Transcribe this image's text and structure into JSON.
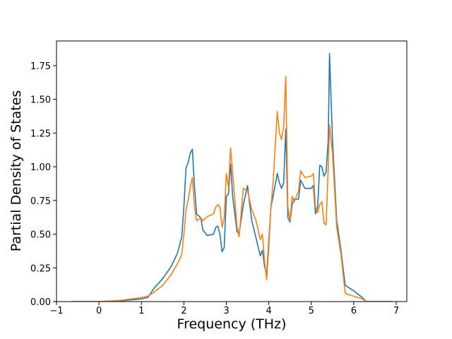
{
  "chart_data": {
    "type": "line",
    "xlabel": "Frequency (THz)",
    "ylabel": "Partial Density of States",
    "x": [
      -0.65,
      0,
      0.5,
      1.0,
      1.15,
      1.3,
      1.5,
      1.7,
      1.85,
      1.95,
      2.0,
      2.05,
      2.1,
      2.15,
      2.2,
      2.25,
      2.3,
      2.4,
      2.45,
      2.55,
      2.7,
      2.75,
      2.8,
      2.85,
      2.9,
      2.95,
      3.0,
      3.05,
      3.1,
      3.15,
      3.25,
      3.3,
      3.4,
      3.5,
      3.55,
      3.6,
      3.7,
      3.8,
      3.85,
      3.9,
      3.95,
      4.0,
      4.05,
      4.1,
      4.2,
      4.25,
      4.3,
      4.35,
      4.4,
      4.45,
      4.5,
      4.55,
      4.6,
      4.7,
      4.75,
      4.85,
      5.0,
      5.05,
      5.1,
      5.15,
      5.2,
      5.25,
      5.3,
      5.35,
      5.4,
      5.43,
      5.5,
      5.6,
      5.7,
      5.8,
      6.0,
      6.2,
      6.3,
      6.9
    ],
    "series": [
      {
        "color": "#1f77b4",
        "values": [
          0,
          0,
          0.005,
          0.02,
          0.03,
          0.1,
          0.17,
          0.26,
          0.36,
          0.48,
          0.7,
          0.99,
          1.03,
          1.1,
          1.13,
          0.85,
          0.65,
          0.62,
          0.53,
          0.49,
          0.5,
          0.55,
          0.56,
          0.5,
          0.37,
          0.4,
          0.78,
          0.8,
          1.02,
          0.78,
          0.52,
          0.5,
          0.72,
          0.86,
          0.72,
          0.6,
          0.47,
          0.34,
          0.38,
          0.26,
          0.2,
          0.45,
          0.7,
          0.78,
          0.95,
          0.88,
          0.84,
          0.88,
          1.28,
          0.62,
          0.59,
          0.72,
          0.76,
          0.76,
          0.9,
          0.84,
          0.84,
          0.86,
          0.65,
          0.7,
          1.01,
          1.0,
          0.93,
          0.96,
          1.2,
          1.84,
          1.2,
          0.6,
          0.38,
          0.12,
          0.08,
          0.03,
          0,
          0
        ]
      },
      {
        "color": "#ff7f0e",
        "values": [
          0,
          0,
          0.008,
          0.03,
          0.04,
          0.07,
          0.12,
          0.2,
          0.28,
          0.35,
          0.5,
          0.68,
          0.75,
          0.85,
          0.92,
          0.7,
          0.6,
          0.62,
          0.6,
          0.63,
          0.65,
          0.7,
          0.72,
          0.7,
          0.55,
          0.62,
          0.95,
          0.85,
          1.14,
          0.95,
          0.56,
          0.48,
          0.84,
          0.82,
          0.75,
          0.68,
          0.6,
          0.46,
          0.5,
          0.3,
          0.16,
          0.4,
          0.7,
          0.88,
          1.41,
          1.25,
          1.2,
          1.3,
          1.67,
          0.7,
          0.6,
          0.78,
          0.74,
          0.82,
          0.97,
          0.92,
          0.93,
          0.95,
          0.7,
          0.66,
          0.72,
          0.74,
          0.58,
          0.57,
          1.0,
          1.31,
          1.1,
          0.55,
          0.35,
          0.06,
          0.04,
          0.02,
          0,
          0
        ]
      }
    ],
    "xlim": [
      -1,
      7.25
    ],
    "ylim": [
      0,
      1.933
    ],
    "xticks": [
      {
        "value": -1,
        "label": "−1"
      },
      0,
      1,
      2,
      3,
      4,
      5,
      6,
      7
    ],
    "yticks": [
      {
        "value": 0,
        "label": "0.00"
      },
      {
        "value": 0.25,
        "label": "0.25"
      },
      {
        "value": 0.5,
        "label": "0.50"
      },
      {
        "value": 0.75,
        "label": "0.75"
      },
      {
        "value": 1.0,
        "label": "1.00"
      },
      {
        "value": 1.25,
        "label": "1.25"
      },
      {
        "value": 1.5,
        "label": "1.50"
      },
      {
        "value": 1.75,
        "label": "1.75"
      }
    ]
  }
}
